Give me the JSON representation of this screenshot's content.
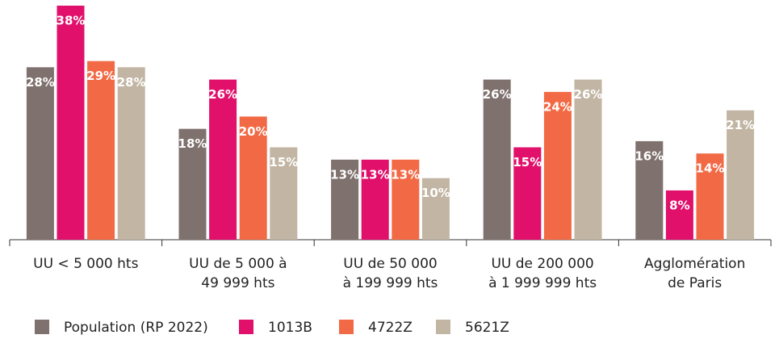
{
  "chart_data": {
    "type": "bar",
    "categories": [
      [
        "UU < 5 000 hts"
      ],
      [
        "UU de 5 000 à",
        "49 999 hts"
      ],
      [
        "UU de 50 000",
        "à 199 999 hts"
      ],
      [
        "UU de 200 000",
        "à 1 999 999 hts"
      ],
      [
        "Agglomération",
        "de Paris"
      ]
    ],
    "series": [
      {
        "name": "Population (RP 2022)",
        "color": "#7f716d",
        "values": [
          28,
          18,
          13,
          26,
          16
        ],
        "value_labels": [
          "28%",
          "18%",
          "13%",
          "26%",
          "16%"
        ]
      },
      {
        "name": "1013B",
        "color": "#e0106b",
        "values": [
          38,
          26,
          13,
          15,
          8
        ],
        "value_labels": [
          "38%",
          "26%",
          "13%",
          "15%",
          "8%"
        ]
      },
      {
        "name": "4722Z",
        "color": "#f26a45",
        "values": [
          29,
          20,
          13,
          24,
          14
        ],
        "value_labels": [
          "29%",
          "20%",
          "13%",
          "24%",
          "14%"
        ]
      },
      {
        "name": "5621Z",
        "color": "#c2b5a3",
        "values": [
          28,
          15,
          10,
          26,
          21
        ],
        "value_labels": [
          "28%",
          "15%",
          "10%",
          "26%",
          "21%"
        ]
      }
    ],
    "ylim": [
      0,
      38
    ]
  }
}
